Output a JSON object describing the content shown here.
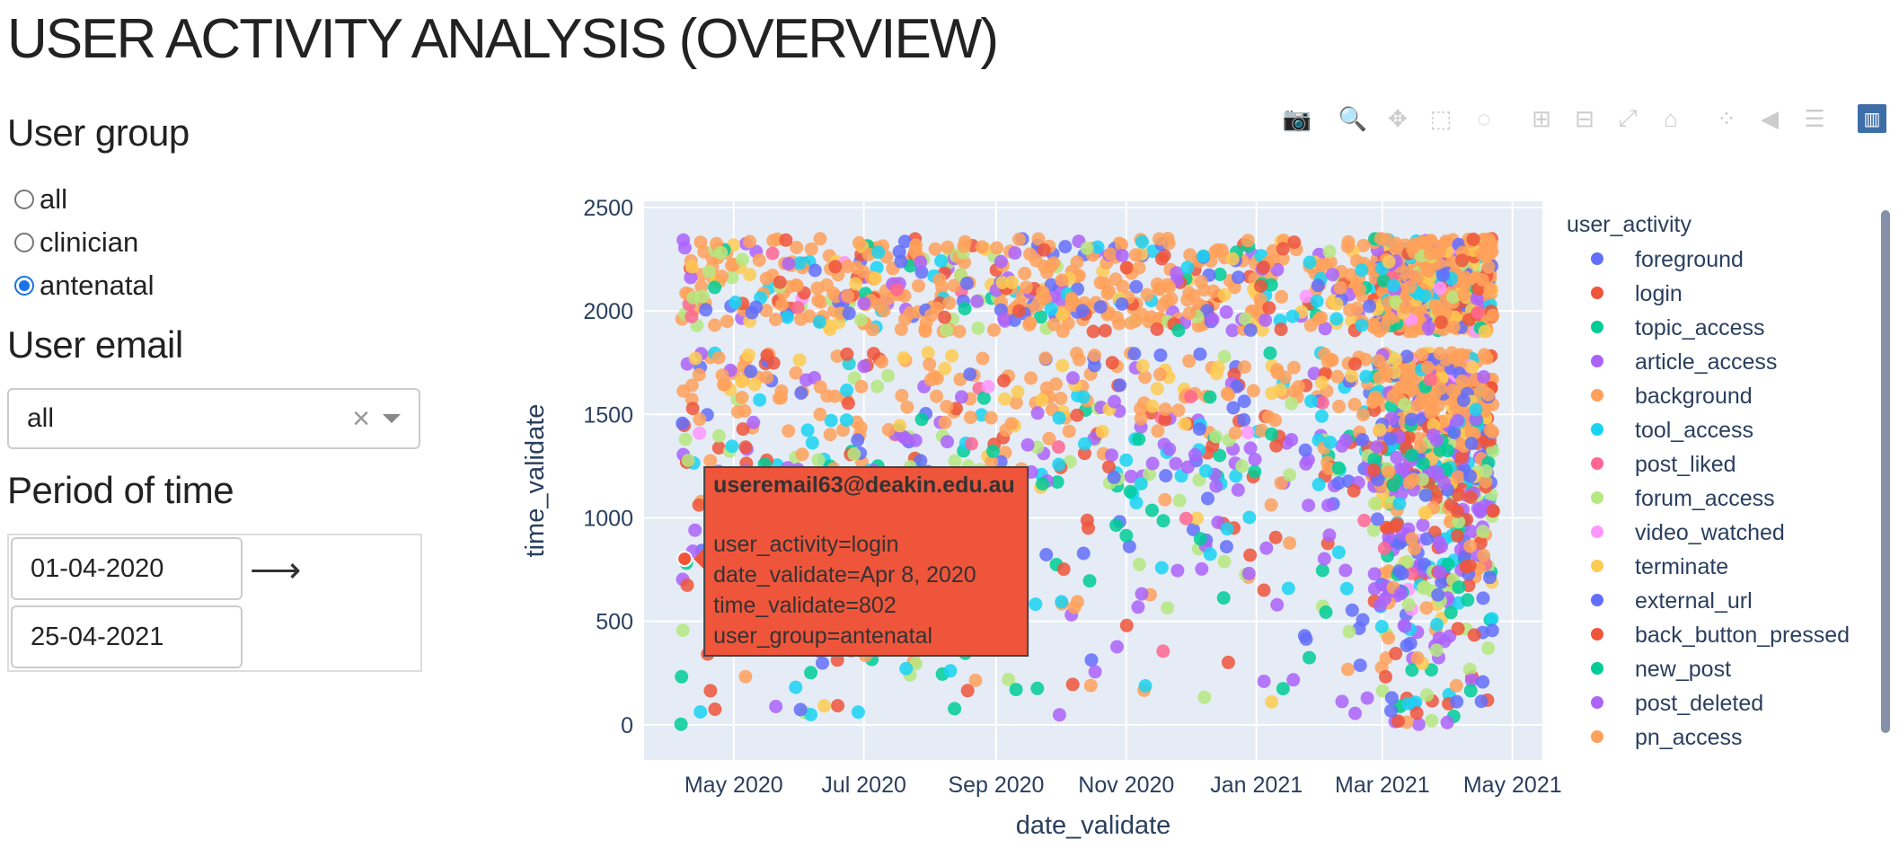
{
  "page": {
    "title": "USER ACTIVITY ANALYSIS (OVERVIEW)"
  },
  "filters": {
    "user_group": {
      "label": "User group",
      "options": [
        {
          "label": "all",
          "selected": false
        },
        {
          "label": "clinician",
          "selected": false
        },
        {
          "label": "antenatal",
          "selected": true
        }
      ]
    },
    "user_email": {
      "label": "User email",
      "value": "all",
      "clear_icon": "×"
    },
    "period": {
      "label": "Period of time",
      "start": "01-04-2020",
      "end": "25-04-2021",
      "arrow_icon": "⟶"
    }
  },
  "modebar": [
    {
      "name": "camera-icon",
      "glyph": "📷"
    },
    {
      "name": "zoom-icon",
      "glyph": "🔍",
      "active": true
    },
    {
      "name": "pan-icon",
      "glyph": "✥"
    },
    {
      "name": "box-select-icon",
      "glyph": "⬚"
    },
    {
      "name": "lasso-select-icon",
      "glyph": "◌"
    },
    {
      "name": "zoom-in-icon",
      "glyph": "⊞"
    },
    {
      "name": "zoom-out-icon",
      "glyph": "⊟"
    },
    {
      "name": "autoscale-icon",
      "glyph": "⤢"
    },
    {
      "name": "reset-axes-icon",
      "glyph": "⌂"
    },
    {
      "name": "spike-lines-icon",
      "glyph": "⁘"
    },
    {
      "name": "hover-closest-icon",
      "glyph": "◀"
    },
    {
      "name": "hover-compare-icon",
      "glyph": "☰"
    },
    {
      "name": "plotly-logo-icon",
      "glyph": "▥"
    }
  ],
  "chart_data": {
    "type": "scatter",
    "xlabel": "date_validate",
    "ylabel": "time_validate",
    "x_ticks": [
      "May 2020",
      "Jul 2020",
      "Sep 2020",
      "Nov 2020",
      "Jan 2021",
      "Mar 2021",
      "May 2021"
    ],
    "x_tick_dates": [
      "2020-05-01",
      "2020-07-01",
      "2020-09-01",
      "2020-11-01",
      "2021-01-01",
      "2021-03-01",
      "2021-05-01"
    ],
    "xlim": [
      "2020-03-20",
      "2021-05-15"
    ],
    "y_ticks": [
      0,
      500,
      1000,
      1500,
      2000,
      2500
    ],
    "ylim": [
      -170,
      2530
    ],
    "grid": true,
    "legend": {
      "title": "user_activity",
      "position": "right",
      "entries": [
        {
          "name": "foreground",
          "color": "#636efa"
        },
        {
          "name": "login",
          "color": "#ef553b"
        },
        {
          "name": "topic_access",
          "color": "#00cc96"
        },
        {
          "name": "article_access",
          "color": "#ab63fa"
        },
        {
          "name": "background",
          "color": "#ffa15a"
        },
        {
          "name": "tool_access",
          "color": "#19d3f3"
        },
        {
          "name": "post_liked",
          "color": "#ff6692"
        },
        {
          "name": "forum_access",
          "color": "#b6e880"
        },
        {
          "name": "video_watched",
          "color": "#ff97ff"
        },
        {
          "name": "terminate",
          "color": "#fecb52"
        },
        {
          "name": "external_url",
          "color": "#636efa"
        },
        {
          "name": "back_button_pressed",
          "color": "#ef553b"
        },
        {
          "name": "new_post",
          "color": "#00cc96"
        },
        {
          "name": "post_deleted",
          "color": "#ab63fa"
        },
        {
          "name": "pn_access",
          "color": "#ffa15a"
        }
      ]
    },
    "tooltip": {
      "header": "useremail63@deakin.edu.au",
      "lines": [
        "user_activity=login",
        "date_validate=Apr 8, 2020",
        "time_validate=802",
        "user_group=antenatal"
      ],
      "point": {
        "date": "2020-04-08",
        "y": 802,
        "series": "login"
      },
      "color": "#ef553b"
    }
  }
}
